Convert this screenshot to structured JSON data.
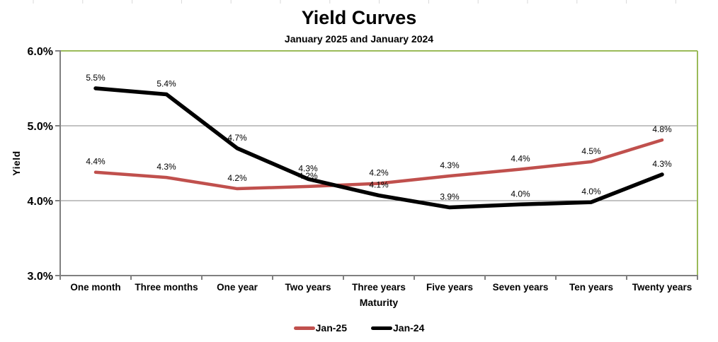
{
  "chart_data": {
    "type": "line",
    "title": "Yield Curves",
    "subtitle": "January 2025 and January 2024",
    "xlabel": "Maturity",
    "ylabel": "Yield",
    "ylim": [
      3.0,
      6.0
    ],
    "yticks": [
      {
        "value": 6.0,
        "label": "6.0%"
      },
      {
        "value": 5.0,
        "label": "5.0%"
      },
      {
        "value": 4.0,
        "label": "4.0%"
      },
      {
        "value": 3.0,
        "label": "3.0%"
      }
    ],
    "categories": [
      "One month",
      "Three months",
      "One year",
      "Two years",
      "Three years",
      "Five years",
      "Seven years",
      "Ten years",
      "Twenty years"
    ],
    "series": [
      {
        "name": "Jan-25",
        "color": "#C0504D",
        "values": [
          4.4,
          4.3,
          4.2,
          4.2,
          4.2,
          4.3,
          4.4,
          4.5,
          4.8
        ],
        "labels": [
          "4.4%",
          "4.3%",
          "4.2%",
          "4.2%",
          "4.2%",
          "4.3%",
          "4.4%",
          "4.5%",
          "4.8%"
        ],
        "values_plot": [
          4.38,
          4.31,
          4.16,
          4.19,
          4.23,
          4.33,
          4.42,
          4.52,
          4.81
        ]
      },
      {
        "name": "Jan-24",
        "color": "#000000",
        "values": [
          5.5,
          5.4,
          4.7,
          4.3,
          4.1,
          3.9,
          4.0,
          4.0,
          4.3
        ],
        "labels": [
          "5.5%",
          "5.4%",
          "4.7%",
          "4.3%",
          "4.1%",
          "3.9%",
          "4.0%",
          "4.0%",
          "4.3%"
        ],
        "values_plot": [
          5.5,
          5.42,
          4.7,
          4.29,
          4.07,
          3.91,
          3.95,
          3.98,
          4.35
        ]
      }
    ],
    "grid": true,
    "data_labels": true,
    "legend_position": "bottom",
    "colors": {
      "plot_border": "#9BBB59",
      "axis": "#808080",
      "gridline": "#878787",
      "text": "#000000",
      "background": "#FFFFFF",
      "sheet_gridline_stub": "#D9D9D9"
    }
  }
}
